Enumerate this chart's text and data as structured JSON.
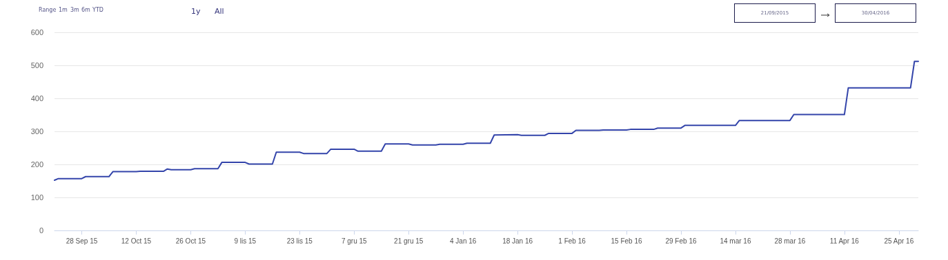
{
  "chart_data": {
    "type": "line",
    "x": [
      "2015-09-21",
      "2015-09-22",
      "2015-09-28",
      "2015-09-29",
      "2015-10-05",
      "2015-10-06",
      "2015-10-12",
      "2015-10-13",
      "2015-10-19",
      "2015-10-20",
      "2015-10-21",
      "2015-10-26",
      "2015-10-27",
      "2015-11-02",
      "2015-11-03",
      "2015-11-09",
      "2015-11-10",
      "2015-11-16",
      "2015-11-17",
      "2015-11-23",
      "2015-11-24",
      "2015-11-30",
      "2015-12-01",
      "2015-12-07",
      "2015-12-08",
      "2015-12-14",
      "2015-12-15",
      "2015-12-21",
      "2015-12-22",
      "2015-12-28",
      "2015-12-29",
      "2016-01-04",
      "2016-01-05",
      "2016-01-11",
      "2016-01-12",
      "2016-01-18",
      "2016-01-19",
      "2016-01-25",
      "2016-01-26",
      "2016-02-01",
      "2016-02-02",
      "2016-02-08",
      "2016-02-09",
      "2016-02-15",
      "2016-02-16",
      "2016-02-22",
      "2016-02-23",
      "2016-02-29",
      "2016-03-01",
      "2016-03-14",
      "2016-03-15",
      "2016-03-28",
      "2016-03-29",
      "2016-04-11",
      "2016-04-12",
      "2016-04-28",
      "2016-04-29",
      "2016-04-30"
    ],
    "series": [
      {
        "color": "#3344aa",
        "values": [
          152,
          157,
          157,
          163,
          163,
          178,
          178,
          179,
          179,
          186,
          184,
          184,
          187,
          187,
          206,
          206,
          201,
          201,
          237,
          237,
          233,
          233,
          246,
          246,
          240,
          240,
          262,
          262,
          259,
          259,
          261,
          261,
          264,
          264,
          289,
          290,
          288,
          288,
          294,
          294,
          303,
          303,
          304,
          304,
          306,
          306,
          310,
          310,
          318,
          318,
          333,
          333,
          351,
          351,
          432,
          432,
          512,
          512
        ]
      }
    ],
    "xlim": [
      "2015-09-21",
      "2016-04-30"
    ],
    "xticks": [
      {
        "value": "2015-09-28",
        "label": "28 Sep 15"
      },
      {
        "value": "2015-10-12",
        "label": "12 Oct 15"
      },
      {
        "value": "2015-10-26",
        "label": "26 Oct 15"
      },
      {
        "value": "2015-11-09",
        "label": "9 lis 15"
      },
      {
        "value": "2015-11-23",
        "label": "23 lis 15"
      },
      {
        "value": "2015-12-07",
        "label": "7 gru 15"
      },
      {
        "value": "2015-12-21",
        "label": "21 gru 15"
      },
      {
        "value": "2016-01-04",
        "label": "4 Jan 16"
      },
      {
        "value": "2016-01-18",
        "label": "18 Jan 16"
      },
      {
        "value": "2016-02-01",
        "label": "1 Feb 16"
      },
      {
        "value": "2016-02-15",
        "label": "15 Feb 16"
      },
      {
        "value": "2016-02-29",
        "label": "29 Feb 16"
      },
      {
        "value": "2016-03-14",
        "label": "14 mar 16"
      },
      {
        "value": "2016-03-28",
        "label": "28 mar 16"
      },
      {
        "value": "2016-04-11",
        "label": "11 Apr 16"
      },
      {
        "value": "2016-04-25",
        "label": "25 Apr 16"
      }
    ],
    "ylim": [
      0,
      600
    ],
    "yticks": [
      0,
      100,
      200,
      300,
      400,
      500,
      600
    ],
    "grid": "y",
    "marker": "none",
    "line_style": "solid",
    "annotations": [
      "Range",
      "1m",
      "3m",
      "6m",
      "YTD",
      "1y",
      "All",
      "21/09/2015",
      "30/04/2016"
    ]
  }
}
